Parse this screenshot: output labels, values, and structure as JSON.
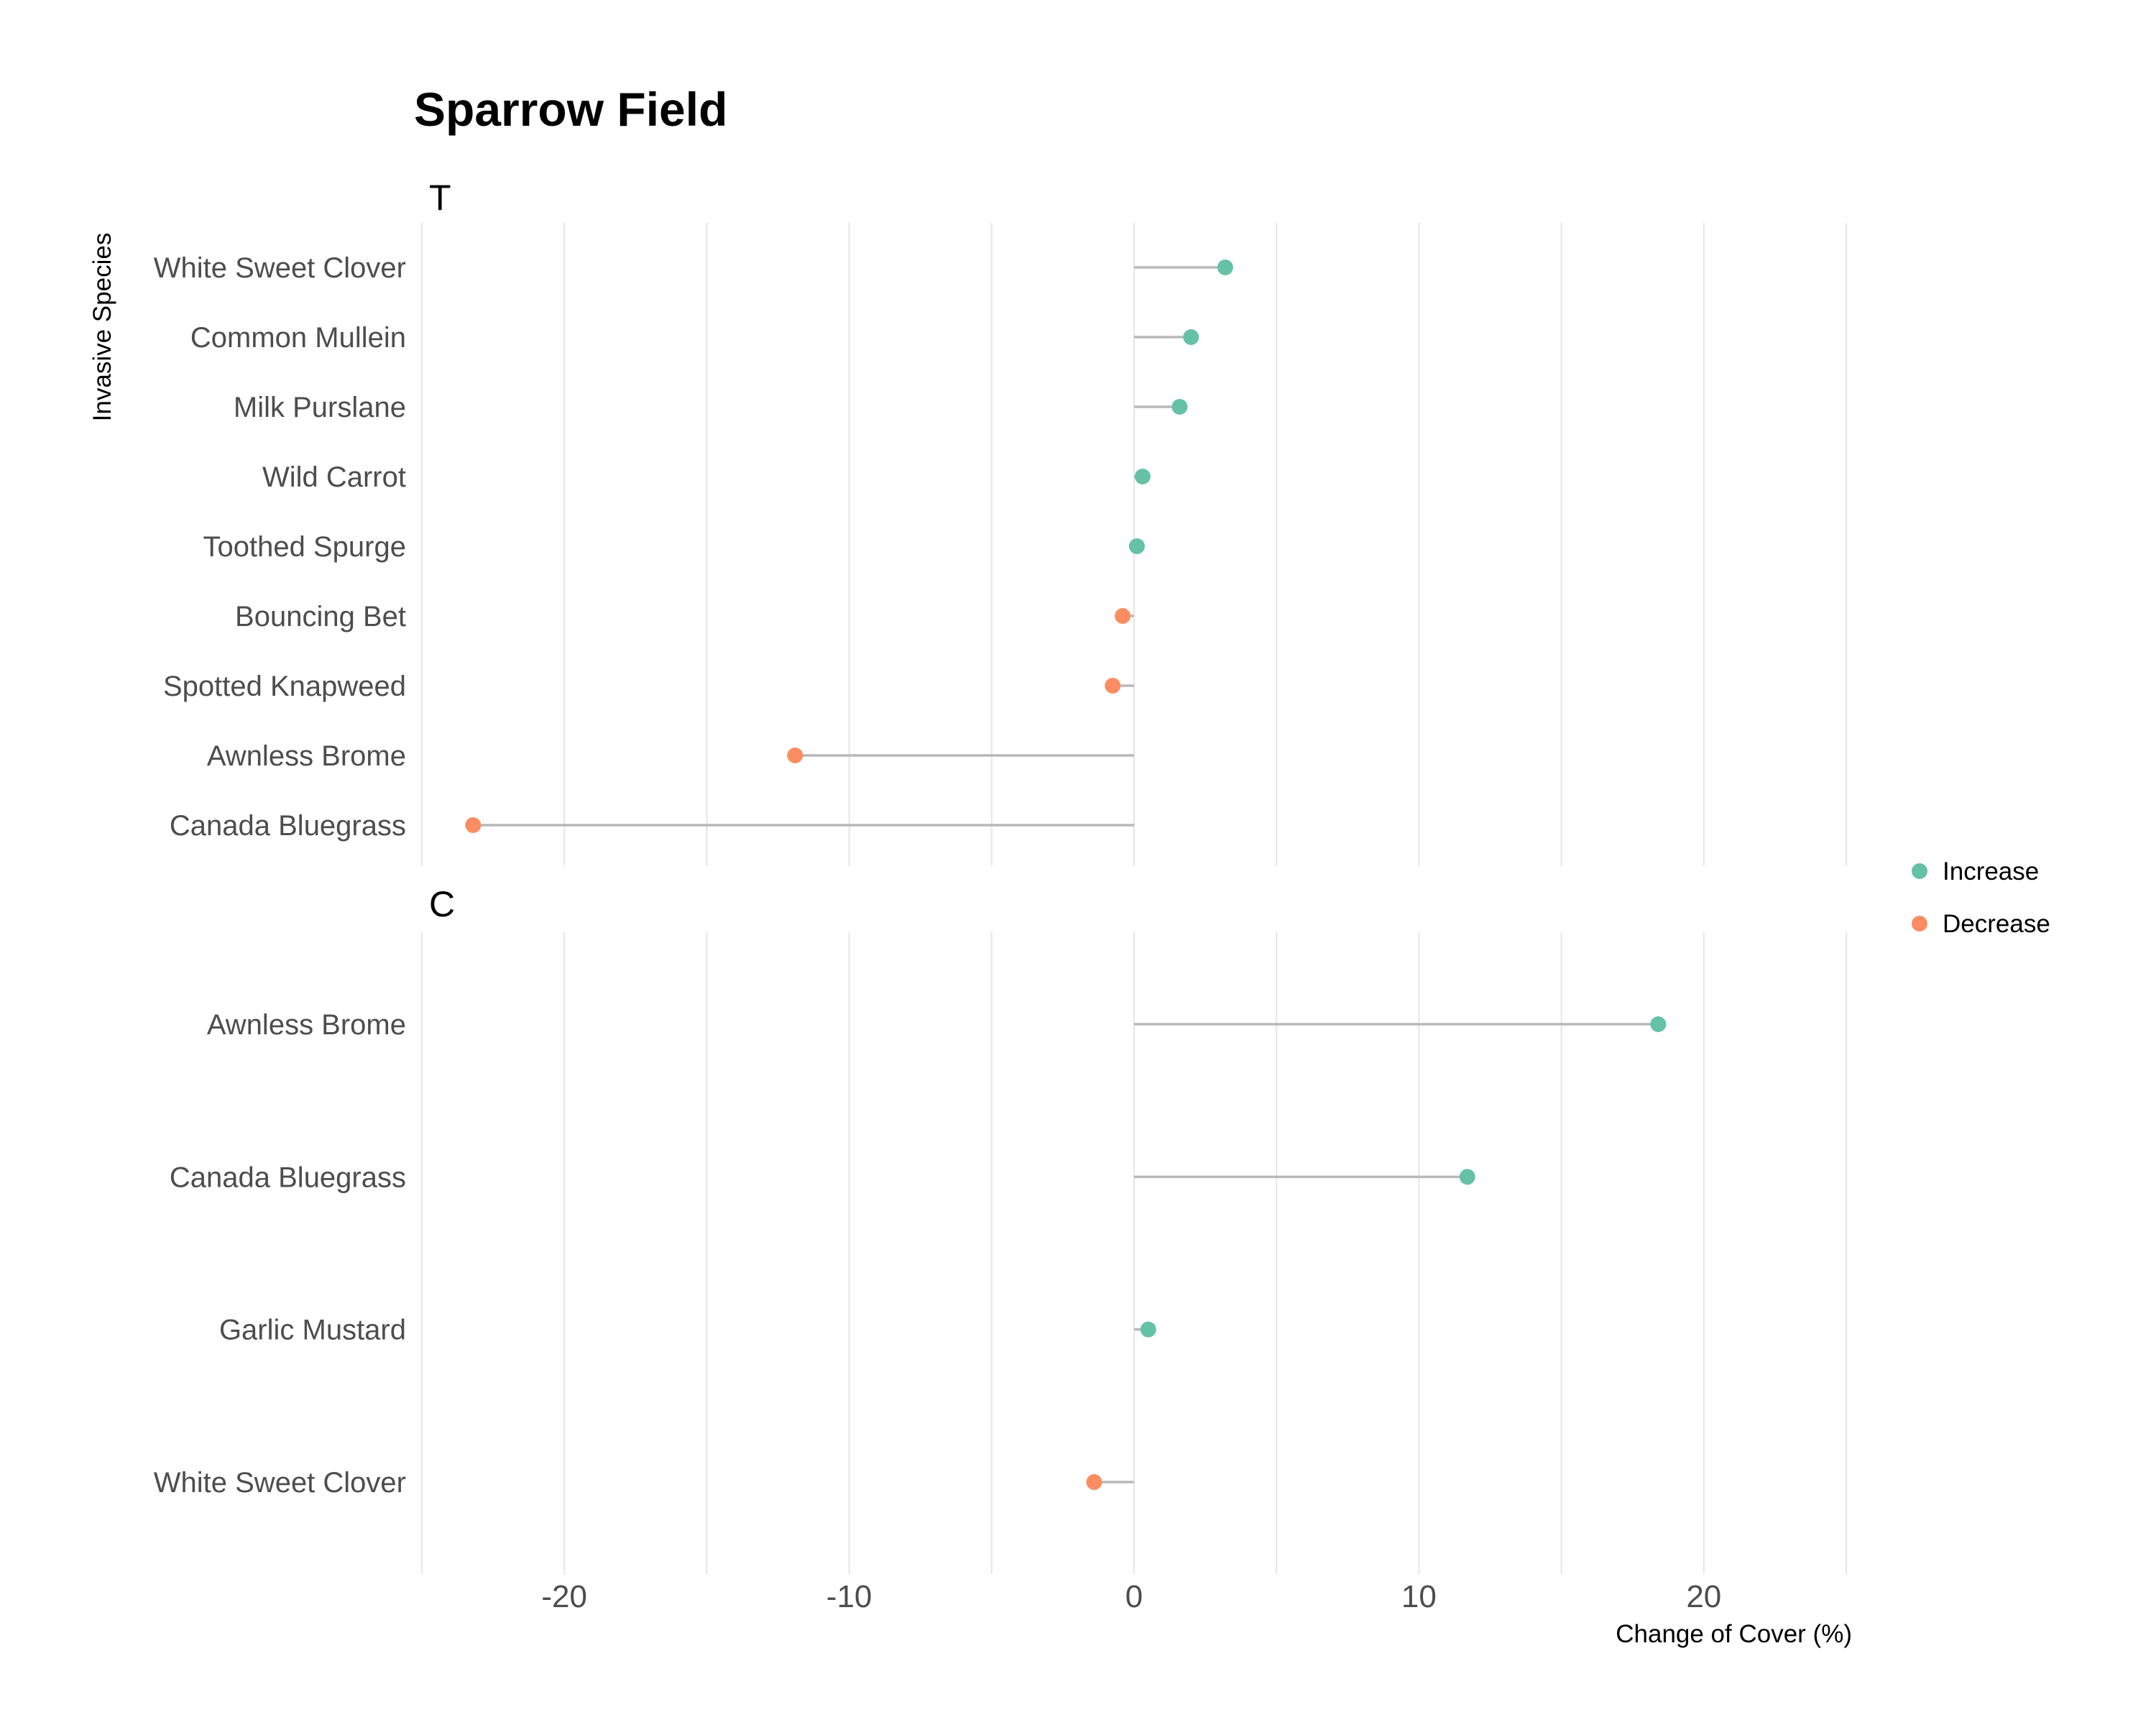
{
  "chart_data": {
    "type": "lollipop",
    "title": "Sparrow Field",
    "xlabel": "Change of Cover (%)",
    "ylabel": "Invasive Species",
    "xlim": [
      -25,
      25
    ],
    "x_ticks": [
      -20,
      -10,
      0,
      10,
      20
    ],
    "grid": "vertical",
    "legend_position": "right",
    "legend": [
      {
        "label": "Increase",
        "color": "#66c2a5"
      },
      {
        "label": "Decrease",
        "color": "#fc8d62"
      }
    ],
    "panels": [
      {
        "label": "T",
        "categories": [
          "White Sweet Clover",
          "Common Mullein",
          "Milk Purslane",
          "Wild Carrot",
          "Toothed Spurge",
          "Bouncing Bet",
          "Spotted Knapweed",
          "Awnless Brome",
          "Canada Bluegrass"
        ],
        "values": [
          3.2,
          2.0,
          1.6,
          0.3,
          0.1,
          -0.4,
          -0.75,
          -11.9,
          -23.2
        ]
      },
      {
        "label": "C",
        "categories": [
          "Awnless Brome",
          "Canada Bluegrass",
          "Garlic Mustard",
          "White Sweet Clover"
        ],
        "values": [
          18.4,
          11.7,
          0.5,
          -1.4
        ]
      }
    ]
  }
}
